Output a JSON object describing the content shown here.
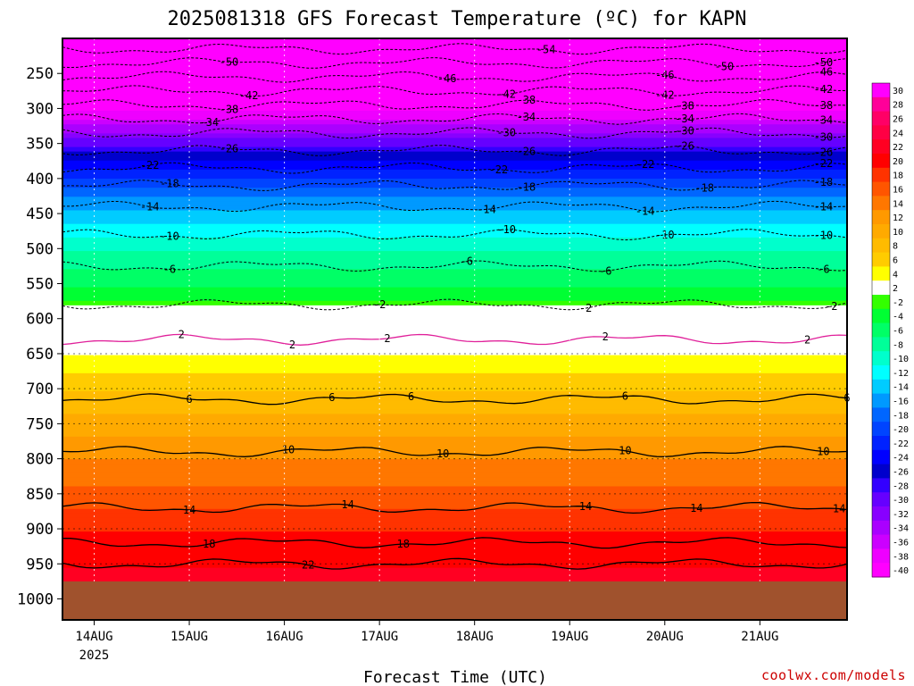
{
  "chart_data": {
    "type": "heatmap",
    "title": "2025081318 GFS Forecast Temperature (ºC) for KAPN",
    "xlabel": "Forecast Time (UTC)",
    "ylabel": "",
    "credit": "coolwx.com/models",
    "x_ticks": [
      "14AUG",
      "15AUG",
      "16AUG",
      "17AUG",
      "18AUG",
      "19AUG",
      "20AUG",
      "21AUG"
    ],
    "x_tick_year": "2025",
    "xlim_hours": [
      -2,
      196
    ],
    "x_tick_hours": [
      6,
      30,
      54,
      78,
      102,
      126,
      150,
      174
    ],
    "y_ticks": [
      250,
      300,
      350,
      400,
      450,
      500,
      550,
      600,
      650,
      700,
      750,
      800,
      850,
      900,
      950,
      1000
    ],
    "ylim_hPa": [
      200,
      1030
    ],
    "ground_level_hPa": 975,
    "ground_color": "#a0522d",
    "colorbar": {
      "labels": [
        "30",
        "28",
        "26",
        "24",
        "22",
        "20",
        "18",
        "16",
        "14",
        "12",
        "10",
        "8",
        "6",
        "4",
        "2",
        "-2",
        "-4",
        "-6",
        "-8",
        "-10",
        "-12",
        "-14",
        "-16",
        "-18",
        "-20",
        "-22",
        "-24",
        "-26",
        "-28",
        "-30",
        "-32",
        "-34",
        "-36",
        "-38",
        "-40"
      ],
      "colors": [
        "#ff00ff",
        "#ff0099",
        "#ff0066",
        "#ff0044",
        "#ff0022",
        "#ff0000",
        "#ff3300",
        "#ff5500",
        "#ff7700",
        "#ff9900",
        "#ffaa00",
        "#ffbb00",
        "#ffcc00",
        "#ffff00",
        "#ffffff",
        "#33ff00",
        "#00ff33",
        "#00ff66",
        "#00ff99",
        "#00ffcc",
        "#00ffff",
        "#00ccff",
        "#0099ff",
        "#0066ff",
        "#0044ff",
        "#0022ff",
        "#0000ff",
        "#0000cc",
        "#3300ff",
        "#6600ff",
        "#8800ff",
        "#aa00ff",
        "#cc00ff",
        "#ee00ff",
        "#ff00ff"
      ]
    },
    "levels_hPa": [
      200,
      250,
      300,
      350,
      400,
      450,
      500,
      550,
      600,
      650,
      700,
      750,
      800,
      850,
      900,
      950,
      975
    ],
    "temperature_profile_C": [
      -56,
      -47,
      -39,
      -29,
      -20,
      -14,
      -9,
      -5,
      0,
      3,
      7,
      10,
      13,
      16,
      19,
      21,
      22
    ],
    "contours": [
      {
        "value": -54,
        "pressure_hPa": 215
      },
      {
        "value": -50,
        "pressure_hPa": 235
      },
      {
        "value": -46,
        "pressure_hPa": 255
      },
      {
        "value": -42,
        "pressure_hPa": 275
      },
      {
        "value": -38,
        "pressure_hPa": 295
      },
      {
        "value": -34,
        "pressure_hPa": 315
      },
      {
        "value": -30,
        "pressure_hPa": 335
      },
      {
        "value": -26,
        "pressure_hPa": 360
      },
      {
        "value": -22,
        "pressure_hPa": 385
      },
      {
        "value": -18,
        "pressure_hPa": 410
      },
      {
        "value": -14,
        "pressure_hPa": 440
      },
      {
        "value": -10,
        "pressure_hPa": 480
      },
      {
        "value": -6,
        "pressure_hPa": 525
      },
      {
        "value": -2,
        "pressure_hPa": 580
      },
      {
        "value": 2,
        "pressure_hPa": 630
      },
      {
        "value": 6,
        "pressure_hPa": 715
      },
      {
        "value": 10,
        "pressure_hPa": 790
      },
      {
        "value": 14,
        "pressure_hPa": 870
      },
      {
        "value": 18,
        "pressure_hPa": 920
      },
      {
        "value": 22,
        "pressure_hPa": 950
      }
    ],
    "contour_label_hours": {
      "-54": [
        120
      ],
      "-50": [
        40,
        165,
        190
      ],
      "-46": [
        95,
        150,
        190
      ],
      "-42": [
        45,
        110,
        150,
        190
      ],
      "-38": [
        40,
        115,
        155,
        190
      ],
      "-34": [
        35,
        115,
        155,
        190
      ],
      "-30": [
        110,
        155,
        190
      ],
      "-26": [
        40,
        115,
        155,
        190
      ],
      "-22": [
        20,
        108,
        145,
        190
      ],
      "-18": [
        25,
        115,
        160,
        190
      ],
      "-14": [
        20,
        105,
        145,
        190
      ],
      "-10": [
        25,
        110,
        150,
        190
      ],
      "-6": [
        25,
        100,
        135,
        190
      ],
      "-2": [
        78,
        130,
        192
      ],
      "2": [
        28,
        56,
        80,
        135,
        186
      ],
      "6": [
        30,
        66,
        86,
        140,
        196
      ],
      "10": [
        55,
        94,
        140,
        190
      ],
      "14": [
        30,
        70,
        130,
        158,
        194
      ],
      "18": [
        35,
        84
      ],
      "22": [
        60
      ]
    }
  }
}
